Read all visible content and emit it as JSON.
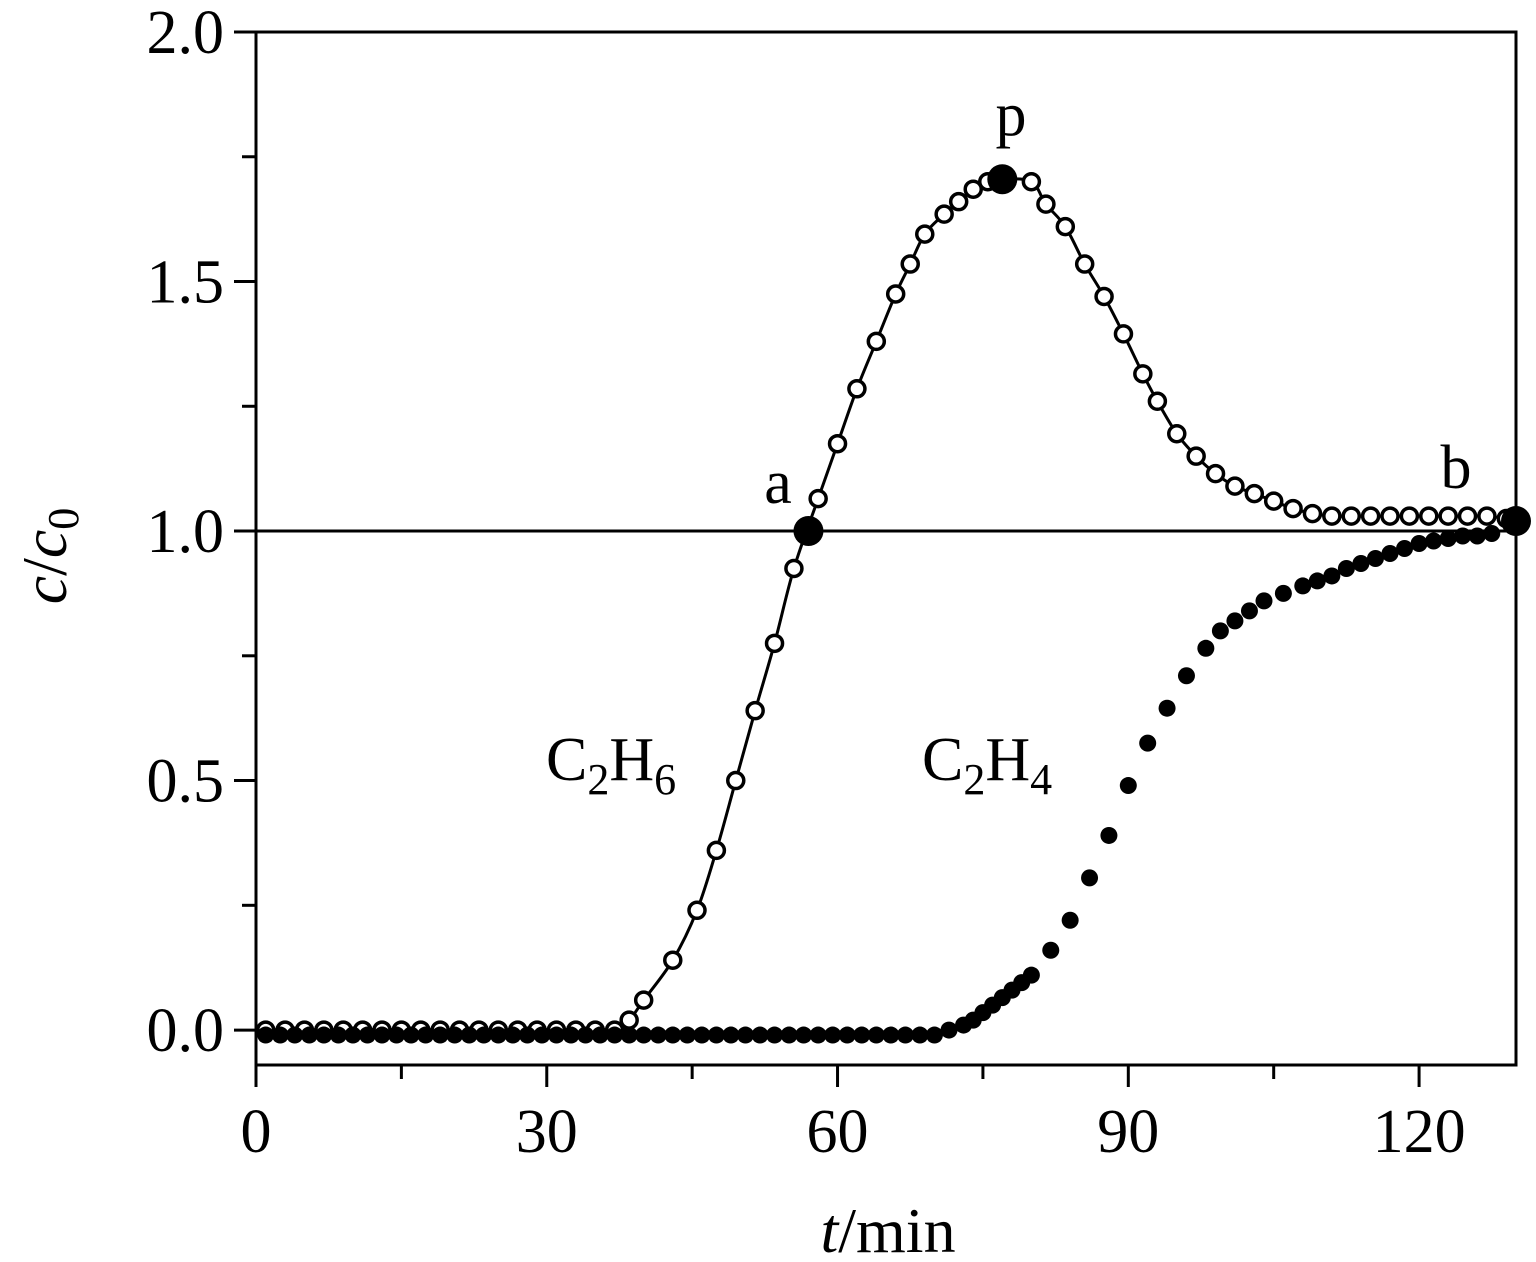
{
  "chart_data": {
    "type": "line",
    "title": "",
    "xlabel": {
      "italic": "t",
      "rest": "/min"
    },
    "ylabel": {
      "italic_base": "c",
      "slash": "/",
      "italic_base2": "c",
      "subscript": "0"
    },
    "xlim": [
      0,
      130
    ],
    "ylim": [
      -0.07,
      2.0
    ],
    "xticks": [
      0,
      30,
      60,
      90,
      120
    ],
    "xtick_labels": [
      "0",
      "30",
      "60",
      "90",
      "120"
    ],
    "xminor_ticks": [
      15,
      45,
      75,
      105
    ],
    "yticks": [
      0.0,
      0.5,
      1.0,
      1.5,
      2.0
    ],
    "ytick_labels": [
      "0.0",
      "0.5",
      "1.0",
      "1.5",
      "2.0"
    ],
    "yminor_ticks": [
      0.25,
      0.75,
      1.25,
      1.75
    ],
    "reference_line": {
      "y": 1.0
    },
    "series": [
      {
        "name": "C2H6",
        "label": {
          "base": "C",
          "sub1": "2",
          "mid": "H",
          "sub2": "6"
        },
        "marker": "open-circle",
        "line": true,
        "x": [
          1,
          3,
          5,
          7,
          9,
          11,
          13,
          15,
          17,
          19,
          21,
          23,
          25,
          27,
          29,
          31,
          33,
          35,
          37,
          38.5,
          40,
          43,
          45.5,
          47.5,
          49.5,
          51.5,
          53.5,
          55.5,
          58,
          60,
          62,
          64,
          66,
          67.5,
          69,
          71,
          72.5,
          74,
          75.5,
          77,
          80,
          81.5,
          83.5,
          85.5,
          87.5,
          89.5,
          91.5,
          93,
          95,
          97,
          99,
          101,
          103,
          105,
          107,
          109,
          111,
          113,
          115,
          117,
          119,
          121,
          123,
          125,
          127,
          129
        ],
        "y": [
          0,
          0,
          0,
          0,
          0,
          0,
          0,
          0,
          0,
          0,
          0,
          0,
          0,
          0,
          0,
          0,
          0,
          0,
          0,
          0.02,
          0.06,
          0.14,
          0.24,
          0.36,
          0.5,
          0.64,
          0.775,
          0.925,
          1.065,
          1.175,
          1.285,
          1.38,
          1.475,
          1.535,
          1.595,
          1.635,
          1.66,
          1.685,
          1.7,
          1.705,
          1.7,
          1.655,
          1.61,
          1.535,
          1.47,
          1.395,
          1.315,
          1.26,
          1.195,
          1.15,
          1.115,
          1.09,
          1.075,
          1.06,
          1.045,
          1.035,
          1.03,
          1.03,
          1.03,
          1.03,
          1.03,
          1.03,
          1.03,
          1.03,
          1.03,
          1.025
        ]
      },
      {
        "name": "C2H4",
        "label": {
          "base": "C",
          "sub1": "2",
          "mid": "H",
          "sub2": "4"
        },
        "marker": "filled-circle",
        "line": false,
        "x": [
          1,
          2.5,
          4,
          5.5,
          7,
          8.5,
          10,
          11.5,
          13,
          14.5,
          16,
          17.5,
          19,
          20.5,
          22,
          23.5,
          25,
          26.5,
          28,
          29.5,
          31,
          32.5,
          34,
          35.5,
          37,
          38.5,
          40,
          41.5,
          43,
          44.5,
          46,
          47.5,
          49,
          50.5,
          52,
          53.5,
          55,
          56.5,
          58,
          59.5,
          61,
          62.5,
          64,
          65.5,
          67,
          68.5,
          70,
          71.5,
          73,
          74,
          75,
          76,
          77,
          78,
          79,
          80,
          82,
          84,
          86,
          88,
          90,
          92,
          94,
          96,
          98,
          99.5,
          101,
          102.5,
          104,
          106,
          108,
          109.5,
          111,
          112.5,
          114,
          115.5,
          117,
          118.5,
          120,
          121.5,
          123,
          124.5,
          126,
          127.5
        ],
        "y": [
          -0.01,
          -0.01,
          -0.01,
          -0.01,
          -0.01,
          -0.01,
          -0.01,
          -0.01,
          -0.01,
          -0.01,
          -0.01,
          -0.01,
          -0.01,
          -0.01,
          -0.01,
          -0.01,
          -0.01,
          -0.01,
          -0.01,
          -0.01,
          -0.01,
          -0.01,
          -0.01,
          -0.01,
          -0.01,
          -0.01,
          -0.01,
          -0.01,
          -0.01,
          -0.01,
          -0.01,
          -0.01,
          -0.01,
          -0.01,
          -0.01,
          -0.01,
          -0.01,
          -0.01,
          -0.01,
          -0.01,
          -0.01,
          -0.01,
          -0.01,
          -0.01,
          -0.01,
          -0.01,
          -0.01,
          0.0,
          0.01,
          0.02,
          0.035,
          0.05,
          0.065,
          0.08,
          0.095,
          0.11,
          0.16,
          0.22,
          0.305,
          0.39,
          0.49,
          0.575,
          0.645,
          0.71,
          0.765,
          0.8,
          0.82,
          0.84,
          0.86,
          0.875,
          0.89,
          0.9,
          0.91,
          0.925,
          0.935,
          0.945,
          0.955,
          0.965,
          0.975,
          0.98,
          0.985,
          0.99,
          0.99,
          0.995
        ]
      }
    ],
    "highlighted_points": [
      {
        "label": "a",
        "x": 57,
        "y": 1.0
      },
      {
        "label": "p",
        "x": 77,
        "y": 1.705
      },
      {
        "label": "b",
        "x": 130,
        "y": 1.02
      }
    ]
  }
}
